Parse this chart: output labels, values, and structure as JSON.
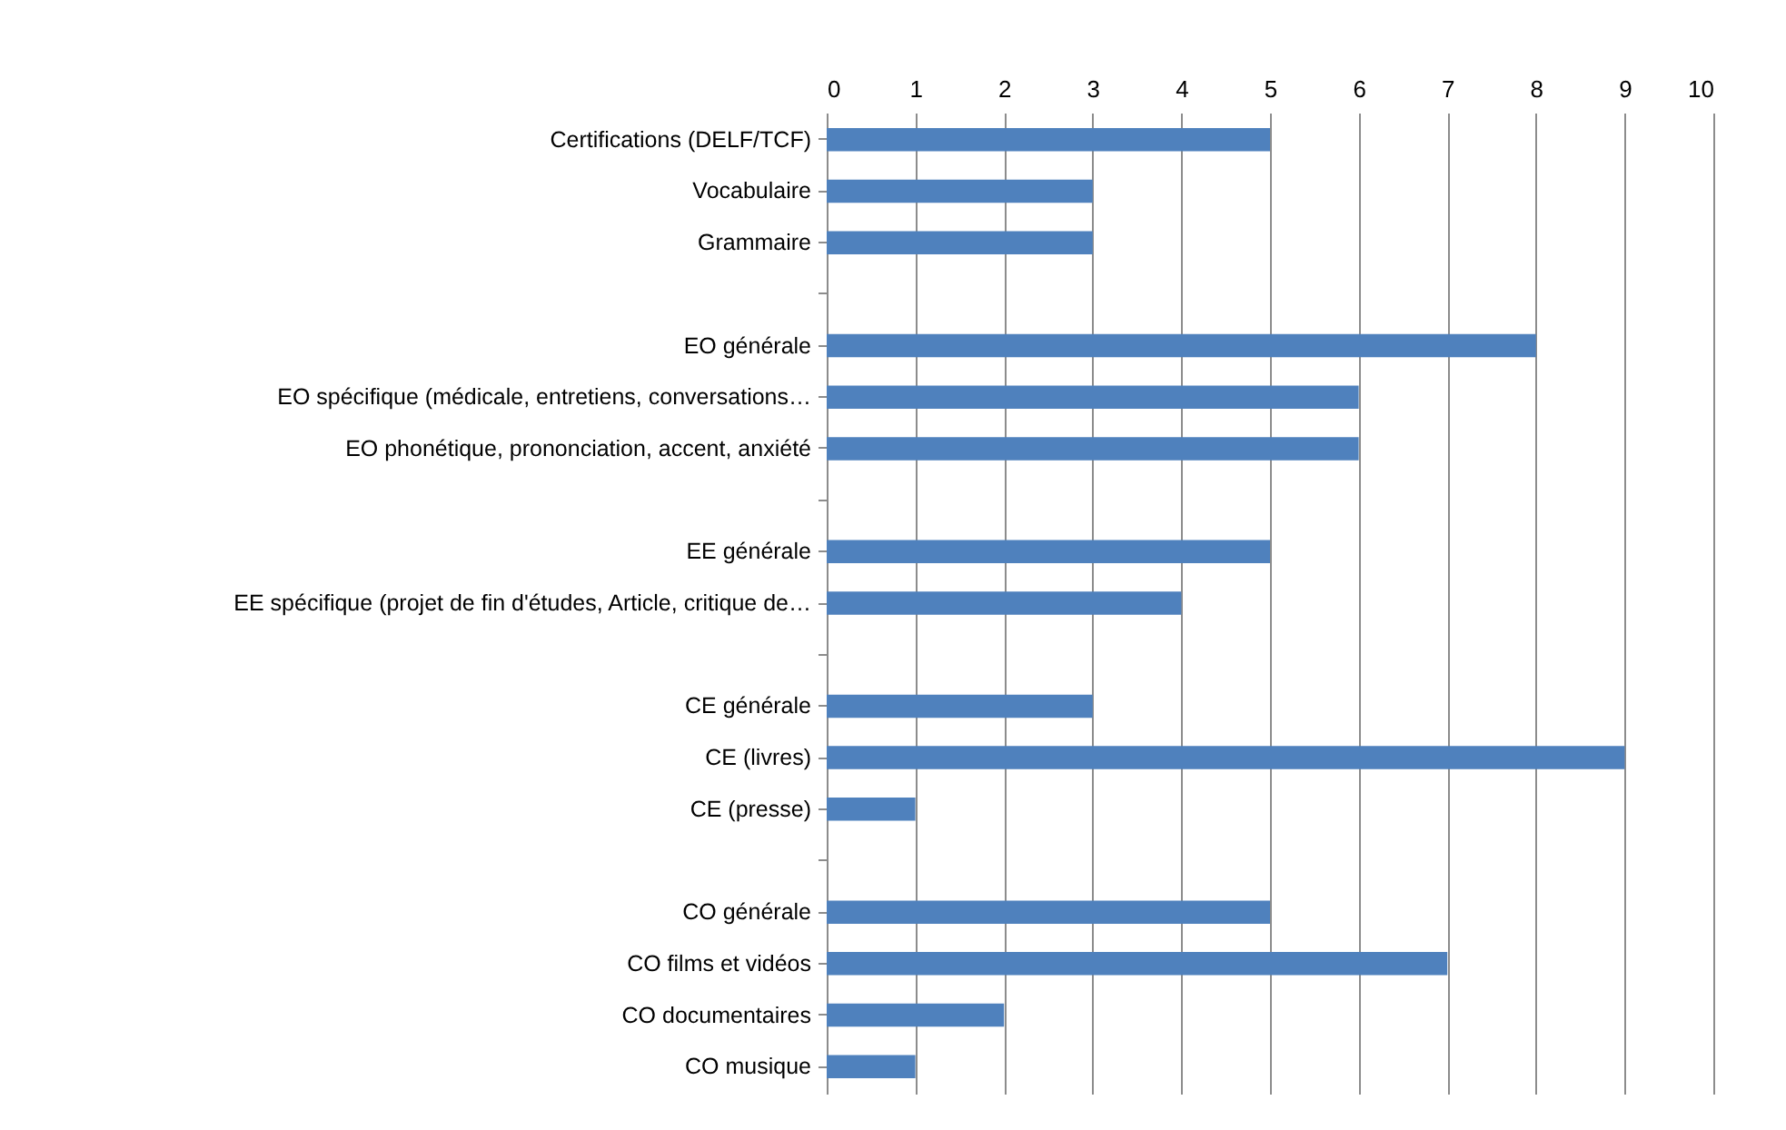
{
  "chart_data": {
    "type": "bar",
    "orientation": "horizontal",
    "categories": [
      "Certifications (DELF/TCF)",
      "Vocabulaire",
      "Grammaire",
      null,
      "EO générale",
      "EO spécifique (médicale, entretiens, conversations…",
      "EO phonétique, prononciation, accent, anxiété",
      null,
      "EE générale",
      "EE spécifique (projet de fin d'études, Article, critique de…",
      null,
      "CE générale",
      "CE (livres)",
      "CE (presse)",
      null,
      "CO générale",
      "CO films et vidéos",
      "CO documentaires",
      "CO musique"
    ],
    "values": [
      5,
      3,
      3,
      null,
      8,
      6,
      6,
      null,
      5,
      4,
      null,
      3,
      9,
      1,
      null,
      5,
      7,
      2,
      1
    ],
    "color": "#4f81bd",
    "xlim": [
      0,
      10
    ],
    "xticks": [
      0,
      1,
      2,
      3,
      4,
      5,
      6,
      7,
      8,
      9,
      10
    ],
    "grid": "x"
  }
}
